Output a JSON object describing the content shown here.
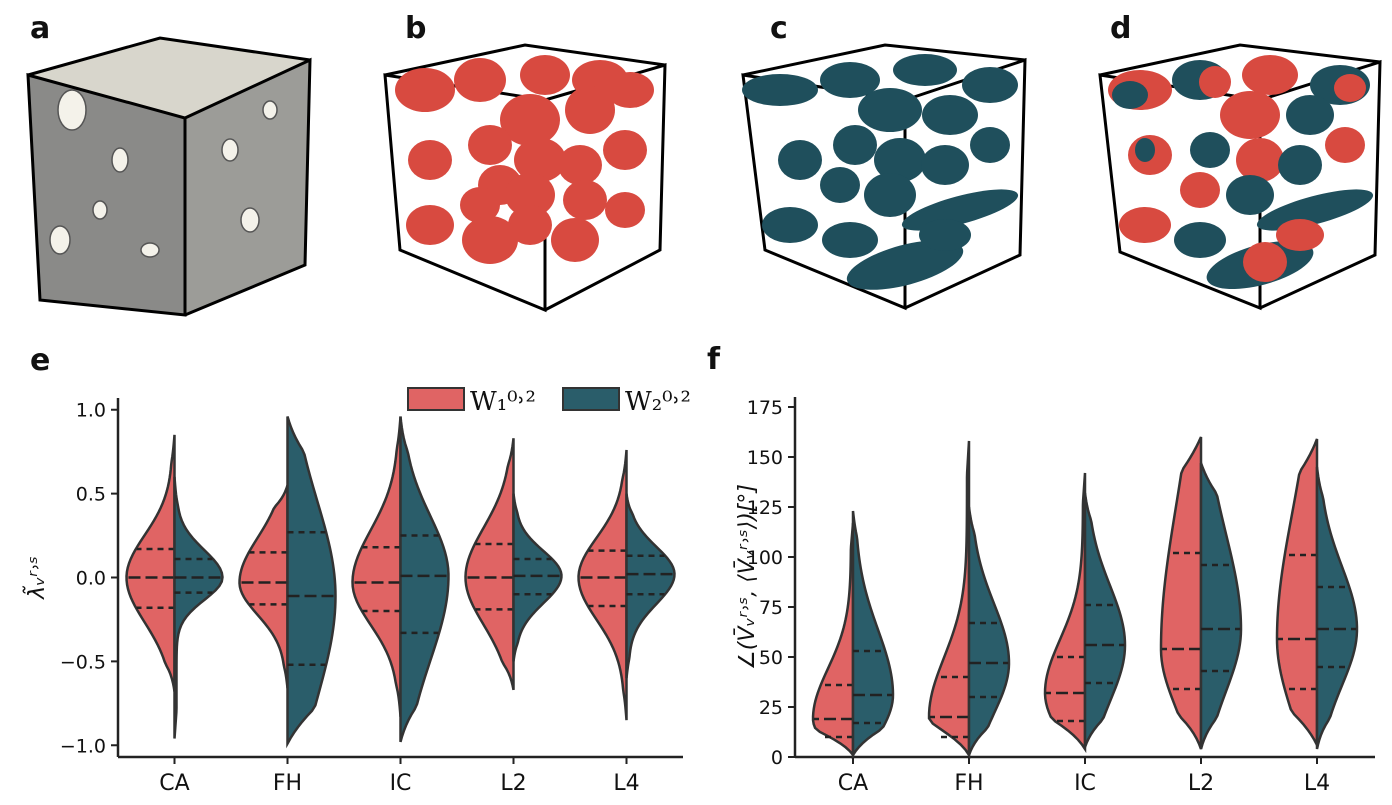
{
  "panels": [
    "a",
    "b",
    "c",
    "d"
  ],
  "chart_data": [
    {
      "type": "violin",
      "panel_label": "e",
      "y_label": "λ̃ᵥʳ˒ˢ",
      "legend": "top-right",
      "categories": [
        "CA",
        "FH",
        "IC",
        "L2",
        "L4"
      ],
      "ylim": [
        -1.07,
        1.07
      ],
      "yticks": [
        {
          "value": -1,
          "label": "−1.0"
        },
        {
          "value": -0.5,
          "label": "−0.5"
        },
        {
          "value": 0,
          "label": "0.0"
        },
        {
          "value": 0.5,
          "label": "0.5"
        },
        {
          "value": 1,
          "label": "1.0"
        }
      ],
      "series": [
        {
          "name": "W₁⁰˒²",
          "color": "#e06464",
          "min": [
            -0.68,
            -0.66,
            -0.83,
            -0.67,
            -0.85
          ],
          "q1": [
            -0.18,
            -0.16,
            -0.2,
            -0.19,
            -0.17
          ],
          "median": [
            0.0,
            -0.03,
            -0.03,
            0.0,
            0.0
          ],
          "q3": [
            0.17,
            0.15,
            0.18,
            0.2,
            0.16
          ],
          "max": [
            0.85,
            0.55,
            0.96,
            0.83,
            0.76
          ]
        },
        {
          "name": "W₂⁰˒²",
          "color": "#2a5d6a",
          "min": [
            -0.96,
            -0.99,
            -0.98,
            -0.5,
            -0.6
          ],
          "q1": [
            -0.09,
            -0.52,
            -0.33,
            -0.1,
            -0.1
          ],
          "median": [
            0.0,
            -0.11,
            0.01,
            0.01,
            0.02
          ],
          "q3": [
            0.11,
            0.27,
            0.25,
            0.11,
            0.13
          ],
          "max": [
            0.6,
            0.96,
            0.96,
            0.5,
            0.5
          ]
        }
      ]
    },
    {
      "type": "violin",
      "panel_label": "f",
      "y_label": "∠(V̄ᵥʳ˒ˢ, ⟨V̄ᵥʳ˒ˢ⟩)[°]",
      "categories": [
        "CA",
        "FH",
        "IC",
        "L2",
        "L4"
      ],
      "ylim": [
        0,
        180
      ],
      "yticks": [
        0,
        25,
        50,
        75,
        100,
        125,
        150,
        175
      ],
      "series": [
        {
          "color": "#e06464",
          "min": [
            1,
            1,
            4,
            4,
            6
          ],
          "q1": [
            10,
            10,
            18,
            34,
            34
          ],
          "median": [
            19,
            20,
            32,
            54,
            59
          ],
          "q3": [
            36,
            40,
            50,
            102,
            101
          ],
          "max": [
            117,
            158,
            142,
            160,
            159
          ]
        },
        {
          "color": "#2a5d6a",
          "min": [
            1,
            1,
            5,
            4,
            4
          ],
          "q1": [
            17,
            30,
            37,
            43,
            45
          ],
          "median": [
            31,
            47,
            56,
            64,
            64
          ],
          "q3": [
            53,
            67,
            76,
            96,
            85
          ],
          "max": [
            123,
            125,
            132,
            147,
            145
          ]
        }
      ]
    }
  ]
}
